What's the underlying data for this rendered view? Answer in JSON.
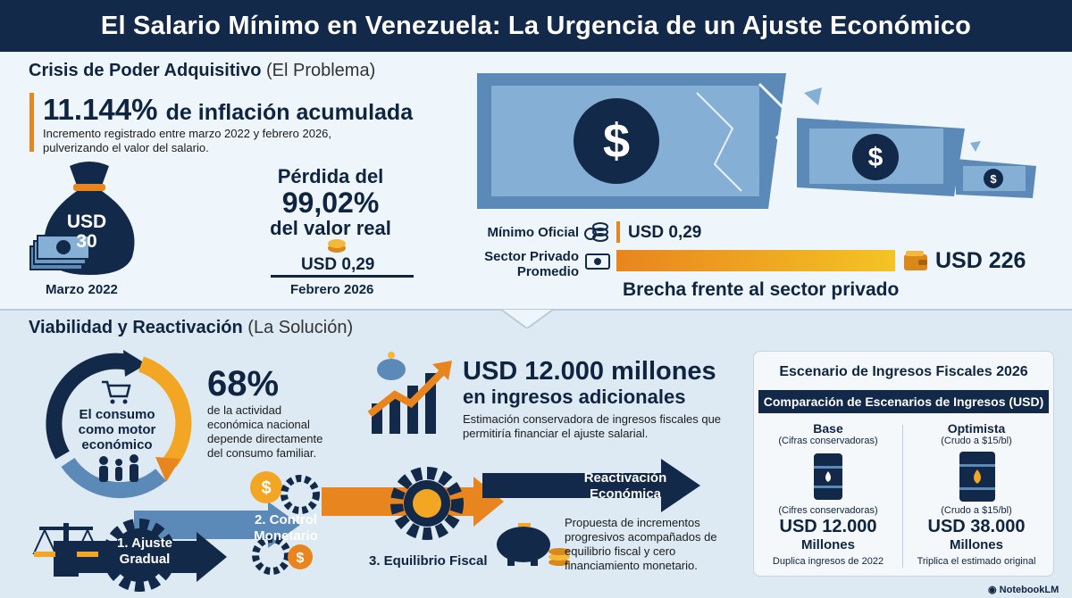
{
  "title": "El Salario Mínimo en Venezuela: La Urgencia de un Ajuste Económico",
  "problem": {
    "heading": "Crisis de Poder Adquisitivo",
    "heading_note": "(El Problema)",
    "inflation_value": "11.144%",
    "inflation_label": "de inflación acumulada",
    "inflation_desc_1": "Incremento registrado entre marzo 2022 y febrero 2026,",
    "inflation_desc_2": "pulverizando el valor del salario.",
    "bag_amount": "USD",
    "bag_amount_2": "30",
    "loss_1": "Pérdida del",
    "loss_2": "99,02%",
    "loss_3": "del valor real",
    "now_amount": "USD 0,29",
    "date_start": "Marzo 2022",
    "date_end": "Febrero 2026"
  },
  "gap": {
    "official_label": "Mínimo Oficial",
    "official_value": "USD 0,29",
    "private_label_1": "Sector Privado",
    "private_label_2": "Promedio",
    "private_value": "USD 226",
    "caption": "Brecha frente al sector privado",
    "official_fraction": 0.0013,
    "private_fraction": 1.0
  },
  "solution": {
    "heading": "Viabilidad y Reactivación",
    "heading_note": "(La Solución)",
    "cycle_label_1": "El consumo",
    "cycle_label_2": "como motor",
    "cycle_label_3": "económico",
    "consumption_pct": "68%",
    "consumption_desc_1": "de la actividad",
    "consumption_desc_2": "económica nacional",
    "consumption_desc_3": "depende directamente",
    "consumption_desc_4": "del consumo familiar.",
    "revenue_value": "USD 12.000 millones",
    "revenue_label": "en ingresos adicionales",
    "revenue_desc_1": "Estimación conservadora de ingresos fiscales que",
    "revenue_desc_2": "permitiría financiar el ajuste salarial.",
    "step1_a": "1. Ajuste",
    "step1_b": "Gradual",
    "step2_a": "2. Control",
    "step2_b": "Monetario",
    "step3": "3. Equilibrio Fiscal",
    "step4_a": "Reactivación",
    "step4_b": "Económica",
    "proposal_1": "Propuesta de incrementos",
    "proposal_2": "progresivos acompañados de",
    "proposal_3": "equilibrio fiscal y cero",
    "proposal_4": "financiamiento monetario."
  },
  "scenario": {
    "title": "Escenario de Ingresos Fiscales 2026",
    "bar": "Comparación de Escenarios de Ingresos (USD)",
    "base_name": "Base",
    "base_sub": "(Cifras conservadoras)",
    "base_sub2": "(Cifres conservadoras)",
    "base_value": "USD 12.000",
    "base_unit": "Millones",
    "base_note": "Duplica ingresos de 2022",
    "opt_name": "Optimista",
    "opt_sub": "(Crudo a $15/bl)",
    "opt_sub2": "(Crudo a $15/bl)",
    "opt_value": "USD 38.000",
    "opt_unit": "Millones",
    "opt_note": "Triplica el estimado original"
  },
  "brand": "NotebookLM",
  "colors": {
    "navy": "#13294a",
    "orange": "#e8851e",
    "yellow": "#f5c423",
    "blue": "#5b89b8"
  }
}
